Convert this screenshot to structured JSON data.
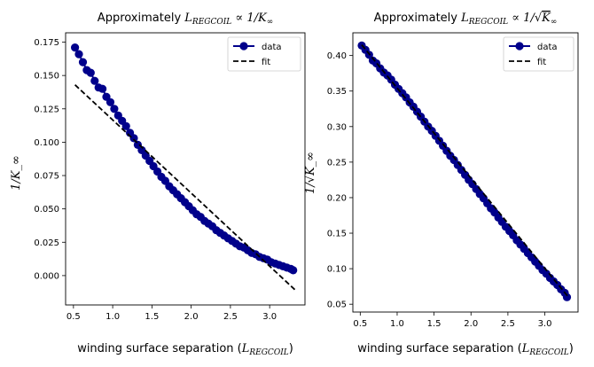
{
  "chart_data": [
    {
      "type": "scatter",
      "title": "Approximately L_REGCOIL ∝ 1/K_∞",
      "title_parts": {
        "prefix": "Approximately ",
        "math": "L",
        "sub": "REGCOIL",
        "rest": " ∝ 1/K",
        "rest_sub": "∞"
      },
      "xlabel": "winding surface separation (L_REGCOIL)",
      "xlabel_parts": {
        "prefix": "winding surface separation (",
        "math": "L",
        "sub": "REGCOIL",
        "suffix": ")"
      },
      "ylabel": "1/K_∞",
      "xlim": [
        0.4,
        3.45
      ],
      "ylim": [
        -0.022,
        0.182
      ],
      "xticks": [
        "0.5",
        "1.0",
        "1.5",
        "2.0",
        "2.5",
        "3.0"
      ],
      "xtick_values": [
        0.5,
        1.0,
        1.5,
        2.0,
        2.5,
        3.0
      ],
      "yticks": [
        "0.000",
        "0.025",
        "0.050",
        "0.075",
        "0.100",
        "0.125",
        "0.150",
        "0.175"
      ],
      "ytick_values": [
        0.0,
        0.025,
        0.05,
        0.075,
        0.1,
        0.125,
        0.15,
        0.175
      ],
      "legend": {
        "position": "top-right",
        "entries": [
          "data",
          "fit"
        ]
      },
      "grid": false,
      "series": [
        {
          "name": "data",
          "style": "line-marker",
          "color": "#00008b",
          "x": [
            0.52,
            0.57,
            0.62,
            0.67,
            0.72,
            0.77,
            0.82,
            0.87,
            0.92,
            0.97,
            1.02,
            1.07,
            1.12,
            1.17,
            1.22,
            1.27,
            1.32,
            1.37,
            1.42,
            1.47,
            1.52,
            1.57,
            1.62,
            1.67,
            1.72,
            1.77,
            1.82,
            1.87,
            1.92,
            1.97,
            2.02,
            2.07,
            2.12,
            2.17,
            2.22,
            2.27,
            2.32,
            2.37,
            2.42,
            2.47,
            2.52,
            2.57,
            2.62,
            2.67,
            2.72,
            2.77,
            2.82,
            2.87,
            2.92,
            2.97,
            3.02,
            3.07,
            3.12,
            3.17,
            3.22,
            3.27,
            3.3
          ],
          "y": [
            0.171,
            0.166,
            0.16,
            0.154,
            0.152,
            0.146,
            0.141,
            0.14,
            0.134,
            0.13,
            0.125,
            0.12,
            0.116,
            0.112,
            0.107,
            0.103,
            0.098,
            0.094,
            0.09,
            0.086,
            0.082,
            0.078,
            0.074,
            0.071,
            0.067,
            0.064,
            0.061,
            0.058,
            0.055,
            0.052,
            0.049,
            0.046,
            0.044,
            0.041,
            0.039,
            0.037,
            0.034,
            0.032,
            0.03,
            0.028,
            0.026,
            0.024,
            0.022,
            0.021,
            0.019,
            0.017,
            0.016,
            0.014,
            0.013,
            0.012,
            0.01,
            0.009,
            0.008,
            0.007,
            0.006,
            0.005,
            0.004
          ]
        },
        {
          "name": "fit",
          "style": "dashed",
          "color": "#000000",
          "x": [
            0.52,
            3.32
          ],
          "y": [
            0.143,
            -0.0105
          ]
        }
      ]
    },
    {
      "type": "scatter",
      "title": "Approximately L_REGCOIL ∝ 1/√K_∞",
      "title_parts": {
        "prefix": "Approximately ",
        "math": "L",
        "sub": "REGCOIL",
        "rest": " ∝ 1/",
        "sqrt_inner": "K",
        "rest_sub": "∞"
      },
      "xlabel": "winding surface separation (L_REGCOIL)",
      "xlabel_parts": {
        "prefix": "winding surface separation (",
        "math": "L",
        "sub": "REGCOIL",
        "suffix": ")"
      },
      "ylabel": "1/√K_∞",
      "xlim": [
        0.4,
        3.45
      ],
      "ylim": [
        0.039,
        0.432
      ],
      "xticks": [
        "0.5",
        "1.0",
        "1.5",
        "2.0",
        "2.5",
        "3.0"
      ],
      "xtick_values": [
        0.5,
        1.0,
        1.5,
        2.0,
        2.5,
        3.0
      ],
      "yticks": [
        "0.05",
        "0.10",
        "0.15",
        "0.20",
        "0.25",
        "0.30",
        "0.35",
        "0.40"
      ],
      "ytick_values": [
        0.05,
        0.1,
        0.15,
        0.2,
        0.25,
        0.3,
        0.35,
        0.4
      ],
      "legend": {
        "position": "top-right",
        "entries": [
          "data",
          "fit"
        ]
      },
      "grid": false,
      "series": [
        {
          "name": "data",
          "style": "line-marker",
          "color": "#00008b",
          "x": [
            0.52,
            0.57,
            0.62,
            0.67,
            0.72,
            0.77,
            0.82,
            0.87,
            0.92,
            0.97,
            1.02,
            1.07,
            1.12,
            1.17,
            1.22,
            1.27,
            1.32,
            1.37,
            1.42,
            1.47,
            1.52,
            1.57,
            1.62,
            1.67,
            1.72,
            1.77,
            1.82,
            1.87,
            1.92,
            1.97,
            2.02,
            2.07,
            2.12,
            2.17,
            2.22,
            2.27,
            2.32,
            2.37,
            2.42,
            2.47,
            2.52,
            2.57,
            2.62,
            2.67,
            2.72,
            2.77,
            2.82,
            2.87,
            2.92,
            2.97,
            3.02,
            3.07,
            3.12,
            3.17,
            3.22,
            3.27,
            3.3
          ],
          "y": [
            0.414,
            0.408,
            0.401,
            0.393,
            0.389,
            0.382,
            0.376,
            0.372,
            0.366,
            0.359,
            0.353,
            0.347,
            0.341,
            0.334,
            0.328,
            0.321,
            0.314,
            0.307,
            0.3,
            0.294,
            0.287,
            0.28,
            0.273,
            0.266,
            0.259,
            0.253,
            0.246,
            0.239,
            0.232,
            0.225,
            0.219,
            0.212,
            0.205,
            0.199,
            0.192,
            0.185,
            0.179,
            0.172,
            0.166,
            0.159,
            0.153,
            0.147,
            0.14,
            0.134,
            0.128,
            0.122,
            0.116,
            0.11,
            0.104,
            0.098,
            0.093,
            0.087,
            0.082,
            0.077,
            0.071,
            0.066,
            0.06
          ]
        },
        {
          "name": "fit",
          "style": "dashed",
          "color": "#000000",
          "x": [
            0.52,
            3.32
          ],
          "y": [
            0.415,
            0.06
          ]
        }
      ]
    }
  ]
}
